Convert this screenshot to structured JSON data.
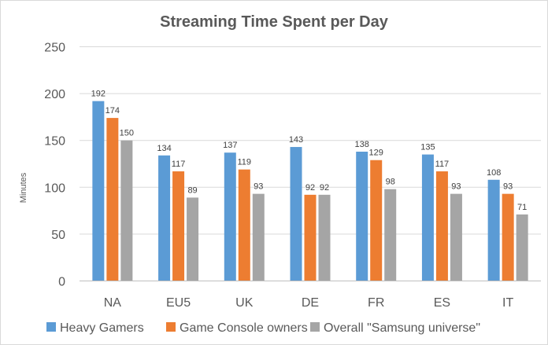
{
  "chart_data": {
    "type": "bar",
    "title": "Streaming Time Spent per Day",
    "xlabel": "",
    "ylabel": "Minutes",
    "ylim": [
      0,
      250
    ],
    "yticks": [
      0,
      50,
      100,
      150,
      200,
      250
    ],
    "grid": true,
    "legend_position": "bottom",
    "categories": [
      "NA",
      "EU5",
      "UK",
      "DE",
      "FR",
      "ES",
      "IT"
    ],
    "series": [
      {
        "name": "Heavy Gamers",
        "color": "#5B9BD5",
        "values": [
          192,
          134,
          137,
          143,
          138,
          135,
          108
        ]
      },
      {
        "name": "Game Console owners",
        "color": "#ED7D31",
        "values": [
          174,
          117,
          119,
          92,
          129,
          117,
          93
        ]
      },
      {
        "name": "Overall \"Samsung universe\"",
        "color": "#A5A5A5",
        "values": [
          150,
          89,
          93,
          92,
          98,
          93,
          71
        ]
      }
    ]
  }
}
